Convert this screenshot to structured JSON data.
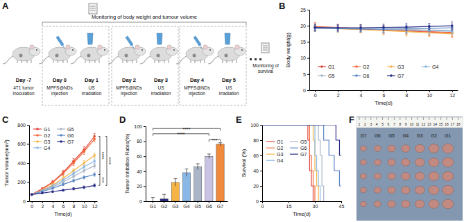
{
  "chart_data": [
    {
      "type": "line",
      "title": "B",
      "x_label": "Time(d)",
      "y_label": "Body weight(g)",
      "x": [
        0,
        2,
        4,
        6,
        8,
        10,
        12
      ],
      "xlim": [
        -0.5,
        12.5
      ],
      "xticks": [
        0,
        2,
        4,
        6,
        8,
        10,
        12
      ],
      "ylim": [
        0,
        25
      ],
      "yticks": [
        0,
        5,
        10,
        15,
        20,
        25
      ],
      "marker": "circle",
      "legend": "bottom",
      "series": [
        {
          "name": "G1",
          "color": "#e0443a",
          "values": [
            19.6,
            19.3,
            19.0,
            18.7,
            18.4,
            18.1,
            17.8
          ],
          "errors": [
            1.0,
            1.1,
            1.0,
            1.2,
            1.1,
            1.2,
            1.3
          ]
        },
        {
          "name": "G2",
          "color": "#f26a3d",
          "values": [
            19.8,
            19.5,
            19.2,
            18.9,
            18.5,
            18.2,
            17.9
          ],
          "errors": [
            1.2,
            1.0,
            1.1,
            1.2,
            1.0,
            1.1,
            1.2
          ]
        },
        {
          "name": "G3",
          "color": "#f5b445",
          "values": [
            19.3,
            19.1,
            18.8,
            18.5,
            18.2,
            17.8,
            17.5
          ],
          "errors": [
            1.1,
            1.2,
            1.0,
            1.3,
            1.4,
            1.2,
            1.1
          ]
        },
        {
          "name": "G4",
          "color": "#8ab8e6",
          "values": [
            19.5,
            19.3,
            19.1,
            18.9,
            18.7,
            18.5,
            18.3
          ],
          "errors": [
            1.0,
            0.9,
            1.0,
            1.1,
            1.0,
            1.2,
            1.0
          ]
        },
        {
          "name": "G5",
          "color": "#aab6c8",
          "values": [
            19.4,
            19.3,
            19.2,
            19.0,
            18.9,
            18.7,
            18.6
          ],
          "errors": [
            0.9,
            1.0,
            1.0,
            1.1,
            1.0,
            1.1,
            1.0
          ]
        },
        {
          "name": "G6",
          "color": "#5a86c6",
          "values": [
            19.2,
            19.1,
            19.0,
            19.0,
            19.1,
            19.2,
            19.4
          ],
          "errors": [
            1.0,
            1.0,
            0.9,
            1.0,
            1.1,
            1.0,
            1.1
          ]
        },
        {
          "name": "G7",
          "color": "#2a2d86",
          "values": [
            19.5,
            19.4,
            19.4,
            19.5,
            19.6,
            19.8,
            20.0
          ],
          "errors": [
            1.0,
            0.9,
            1.0,
            1.0,
            1.1,
            1.0,
            1.2
          ]
        }
      ]
    },
    {
      "type": "line",
      "title": "C",
      "x_label": "Time(d)",
      "y_label": "Tumor volume(mm³)",
      "x": [
        0,
        2,
        4,
        6,
        8,
        10,
        12
      ],
      "xlim": [
        -0.5,
        12.5
      ],
      "xticks": [
        0,
        2,
        4,
        6,
        8,
        10,
        12
      ],
      "ylim": [
        0,
        800
      ],
      "yticks": [
        0,
        200,
        400,
        600,
        800
      ],
      "marker": "circle",
      "legend": "upper-left",
      "series": [
        {
          "name": "G1",
          "color": "#e0443a",
          "values": [
            70,
            130,
            200,
            300,
            420,
            540,
            680
          ],
          "errors": [
            6,
            12,
            18,
            24,
            28,
            32,
            30
          ]
        },
        {
          "name": "G2",
          "color": "#f26a3d",
          "values": [
            70,
            125,
            195,
            290,
            400,
            520,
            650
          ],
          "errors": [
            6,
            10,
            16,
            22,
            26,
            30,
            28
          ]
        },
        {
          "name": "G3",
          "color": "#f5b445",
          "values": [
            70,
            115,
            170,
            240,
            320,
            400,
            480
          ],
          "errors": [
            6,
            10,
            14,
            18,
            22,
            26,
            24
          ]
        },
        {
          "name": "G4",
          "color": "#8ab8e6",
          "values": [
            70,
            110,
            160,
            220,
            290,
            360,
            420
          ],
          "errors": [
            6,
            9,
            12,
            16,
            20,
            22,
            24
          ]
        },
        {
          "name": "G5",
          "color": "#aab6c8",
          "values": [
            70,
            105,
            150,
            200,
            260,
            320,
            370
          ],
          "errors": [
            6,
            8,
            12,
            14,
            18,
            20,
            22
          ]
        },
        {
          "name": "G6",
          "color": "#5a86c6",
          "values": [
            70,
            100,
            135,
            175,
            215,
            250,
            280
          ],
          "errors": [
            6,
            8,
            10,
            12,
            14,
            16,
            18
          ]
        },
        {
          "name": "G7",
          "color": "#2a2d86",
          "values": [
            70,
            85,
            100,
            115,
            130,
            145,
            165
          ],
          "errors": [
            6,
            6,
            8,
            10,
            12,
            14,
            16
          ]
        }
      ],
      "annotations": [
        {
          "text": "****",
          "y": [
            680,
            280
          ]
        },
        {
          "text": "****",
          "y": [
            680,
            165
          ]
        },
        {
          "text": "***",
          "y": [
            280,
            165
          ]
        }
      ]
    },
    {
      "type": "bar",
      "title": "D",
      "y_label": "Tumor Inhibition Rates(%)",
      "categories": [
        "G1",
        "G2",
        "G3",
        "G4",
        "G5",
        "G6",
        "G7"
      ],
      "values": [
        0,
        3,
        25,
        38,
        46,
        60,
        76
      ],
      "errors": [
        5,
        6,
        5,
        5,
        4,
        3,
        2
      ],
      "colors": [
        "#e0443a",
        "#2a2d86",
        "#f5b445",
        "#8ab8e6",
        "#aab6c8",
        "#c9c3e3",
        "#f08a3c"
      ],
      "ylim": [
        0,
        100
      ],
      "yticks": [
        0,
        20,
        40,
        60,
        80,
        100
      ],
      "annotations": [
        {
          "text": "****",
          "x": [
            0,
            6
          ],
          "y": 97
        },
        {
          "text": "****",
          "x": [
            0,
            5
          ],
          "y": 90
        },
        {
          "text": "***",
          "x": [
            5,
            6
          ],
          "y": 82
        }
      ]
    },
    {
      "type": "line",
      "line_style": "step",
      "title": "E",
      "x_label": "Time(d)",
      "y_label": "Survival (%)",
      "xlim": [
        0,
        45
      ],
      "xticks": [
        0,
        15,
        30,
        45
      ],
      "ylim": [
        0,
        100
      ],
      "yticks": [
        0,
        20,
        40,
        60,
        80,
        100
      ],
      "legend": "left",
      "series": [
        {
          "name": "G1",
          "color": "#e0443a",
          "x": [
            0,
            26,
            27,
            28,
            29
          ],
          "values": [
            100,
            80,
            40,
            20,
            0
          ]
        },
        {
          "name": "G2",
          "color": "#f26a3d",
          "x": [
            0,
            27,
            28,
            29,
            30
          ],
          "values": [
            100,
            60,
            40,
            20,
            0
          ]
        },
        {
          "name": "G3",
          "color": "#f5b445",
          "x": [
            0,
            29,
            30,
            31,
            32
          ],
          "values": [
            100,
            80,
            40,
            20,
            0
          ]
        },
        {
          "name": "G4",
          "color": "#8ab8e6",
          "x": [
            0,
            30,
            31,
            32,
            33
          ],
          "values": [
            100,
            60,
            40,
            20,
            0
          ]
        },
        {
          "name": "G5",
          "color": "#aab6c8",
          "x": [
            0,
            32,
            33,
            34,
            35
          ],
          "values": [
            100,
            80,
            60,
            20,
            0
          ]
        },
        {
          "name": "G6",
          "color": "#5a86c6",
          "x": [
            0,
            35,
            38,
            41,
            44,
            45
          ],
          "values": [
            100,
            80,
            60,
            40,
            20,
            20
          ]
        },
        {
          "name": "G7",
          "color": "#2a2d86",
          "x": [
            0,
            42,
            44,
            45
          ],
          "values": [
            100,
            80,
            60,
            60
          ]
        }
      ]
    }
  ],
  "diagram": {
    "title": "A",
    "header": "Monitoring of body weight and tumour volume",
    "steps": [
      {
        "day": "Day -7",
        "label": "4T1 tumor inoculation"
      },
      {
        "day": "Day 0",
        "label": "MPFS@NDs injection"
      },
      {
        "day": "Day 1",
        "label": "US irradiation"
      },
      {
        "day": "Day 2",
        "label": "MPFS@NDs injection"
      },
      {
        "day": "Day 3",
        "label": "US irradiation"
      },
      {
        "day": "Day 4",
        "label": "MPFS@NDs injection"
      },
      {
        "day": "Day 5",
        "label": "US irradiation"
      }
    ],
    "footer": "Monitoring of survival"
  },
  "photo": {
    "title": "F",
    "ruler": [
      1,
      2,
      3,
      4,
      5,
      6,
      7,
      8,
      9,
      10,
      11,
      12,
      13,
      14,
      15,
      16,
      17,
      18
    ],
    "groups": [
      "G7",
      "G6",
      "G5",
      "G4",
      "G3",
      "G2",
      "G1"
    ]
  }
}
